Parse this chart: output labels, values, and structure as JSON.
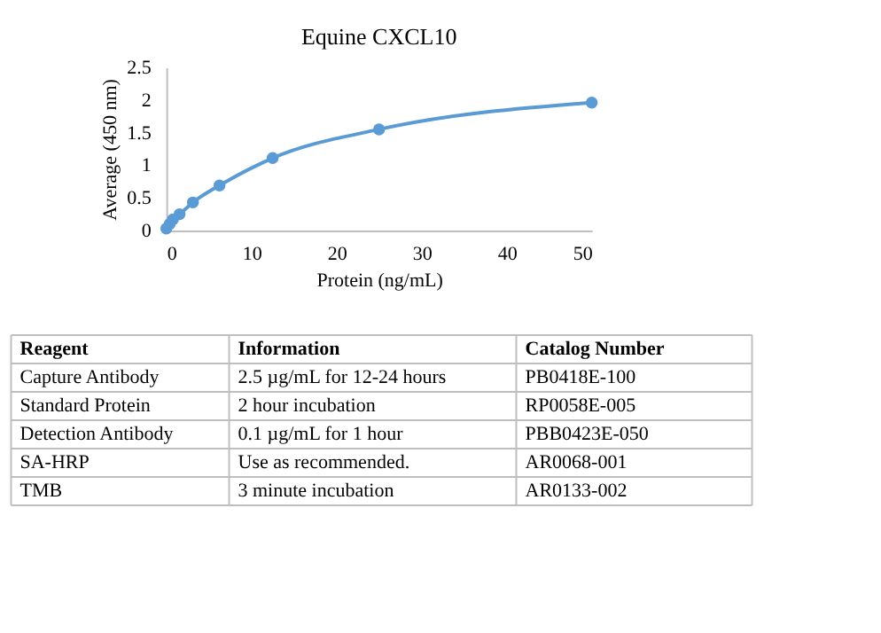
{
  "chart_data": {
    "type": "line",
    "title": "Equine CXCL10",
    "xlabel": "Protein (ng/mL)",
    "ylabel": "Average (450 nm)",
    "x": [
      0,
      0.39,
      0.78,
      1.56,
      3.125,
      6.25,
      12.5,
      25,
      50
    ],
    "series": [
      {
        "color": "#5b9bd5",
        "values": [
          0.03,
          0.1,
          0.17,
          0.25,
          0.43,
          0.69,
          1.11,
          1.55,
          1.96
        ]
      }
    ],
    "xlim": [
      0,
      50
    ],
    "xticks": [
      0,
      10,
      20,
      30,
      40,
      50
    ],
    "ylim": [
      0,
      2.5
    ],
    "yticks": [
      0,
      0.5,
      1,
      1.5,
      2,
      2.5
    ],
    "grid": false,
    "marker": "circle",
    "line_style": "solid",
    "annotations": [
      "Reagent",
      "Information",
      "Catalog Number",
      "Capture Antibody",
      "2.5 µg/mL for 12-24 hours",
      "PB0418E-100",
      "Standard Protein",
      "2 hour incubation",
      "RP0058E-005",
      "Detection Antibody",
      "0.1 µg/mL for 1 hour",
      "PBB0423E-050",
      "SA-HRP",
      "Use as recommended.",
      "AR0068-001",
      "TMB",
      "3 minute incubation",
      "AR0133-002"
    ]
  }
}
